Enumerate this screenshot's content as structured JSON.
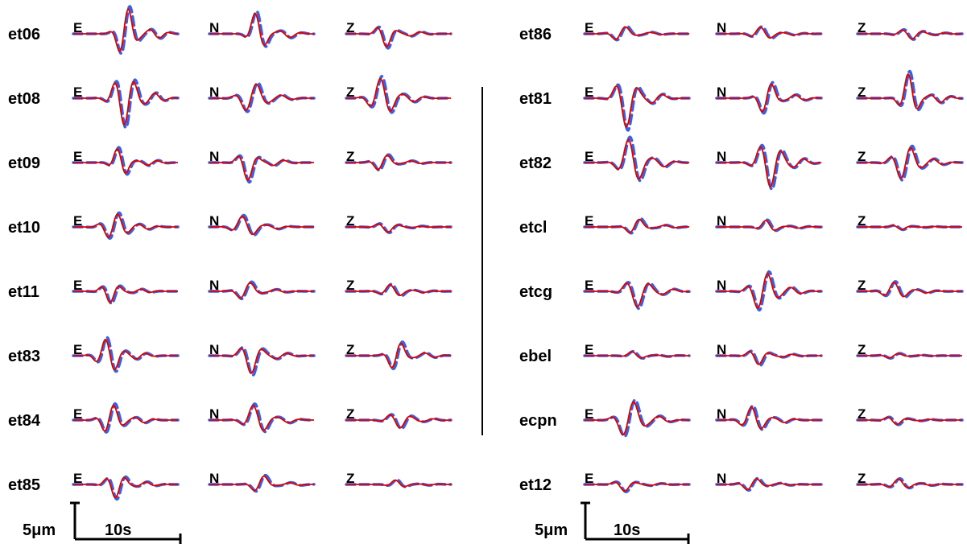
{
  "chart_data": {
    "type": "line",
    "title": "",
    "legend": [],
    "components": [
      "E",
      "N",
      "Z"
    ],
    "colors": {
      "observed": "#3a5fe0",
      "synthetic": "#e00000",
      "axis": "#000000"
    },
    "panels": [
      {
        "id": "left",
        "stations": [
          "et06",
          "et08",
          "et09",
          "et10",
          "et11",
          "et83",
          "et84",
          "et85"
        ],
        "peak_amplitude_um": [
          [
            6.0,
            5.0,
            3.0
          ],
          [
            6.0,
            3.5,
            4.5
          ],
          [
            3.5,
            4.0,
            2.0
          ],
          [
            3.0,
            2.5,
            1.2
          ],
          [
            2.5,
            2.2,
            1.5
          ],
          [
            4.0,
            4.0,
            3.5
          ],
          [
            3.5,
            3.5,
            1.8
          ],
          [
            3.0,
            2.2,
            1.0
          ]
        ],
        "scale_bar": {
          "amplitude_label": "5μm",
          "time_label": "10s",
          "amplitude_um": 5,
          "time_s": 10
        }
      },
      {
        "id": "right",
        "stations": [
          "et86",
          "et81",
          "et82",
          "etcl",
          "etcg",
          "ebel",
          "ecpn",
          "et12"
        ],
        "peak_amplitude_um": [
          [
            1.8,
            1.5,
            1.2
          ],
          [
            6.5,
            4.0,
            5.5
          ],
          [
            5.5,
            5.5,
            4.0
          ],
          [
            2.0,
            1.5,
            0.6
          ],
          [
            3.5,
            4.5,
            2.0
          ],
          [
            1.0,
            2.0,
            0.6
          ],
          [
            4.5,
            3.0,
            1.0
          ],
          [
            1.5,
            1.5,
            1.2
          ]
        ],
        "scale_bar": {
          "amplitude_label": "5μm",
          "time_label": "10s",
          "amplitude_um": 5,
          "time_s": 10
        }
      }
    ]
  }
}
